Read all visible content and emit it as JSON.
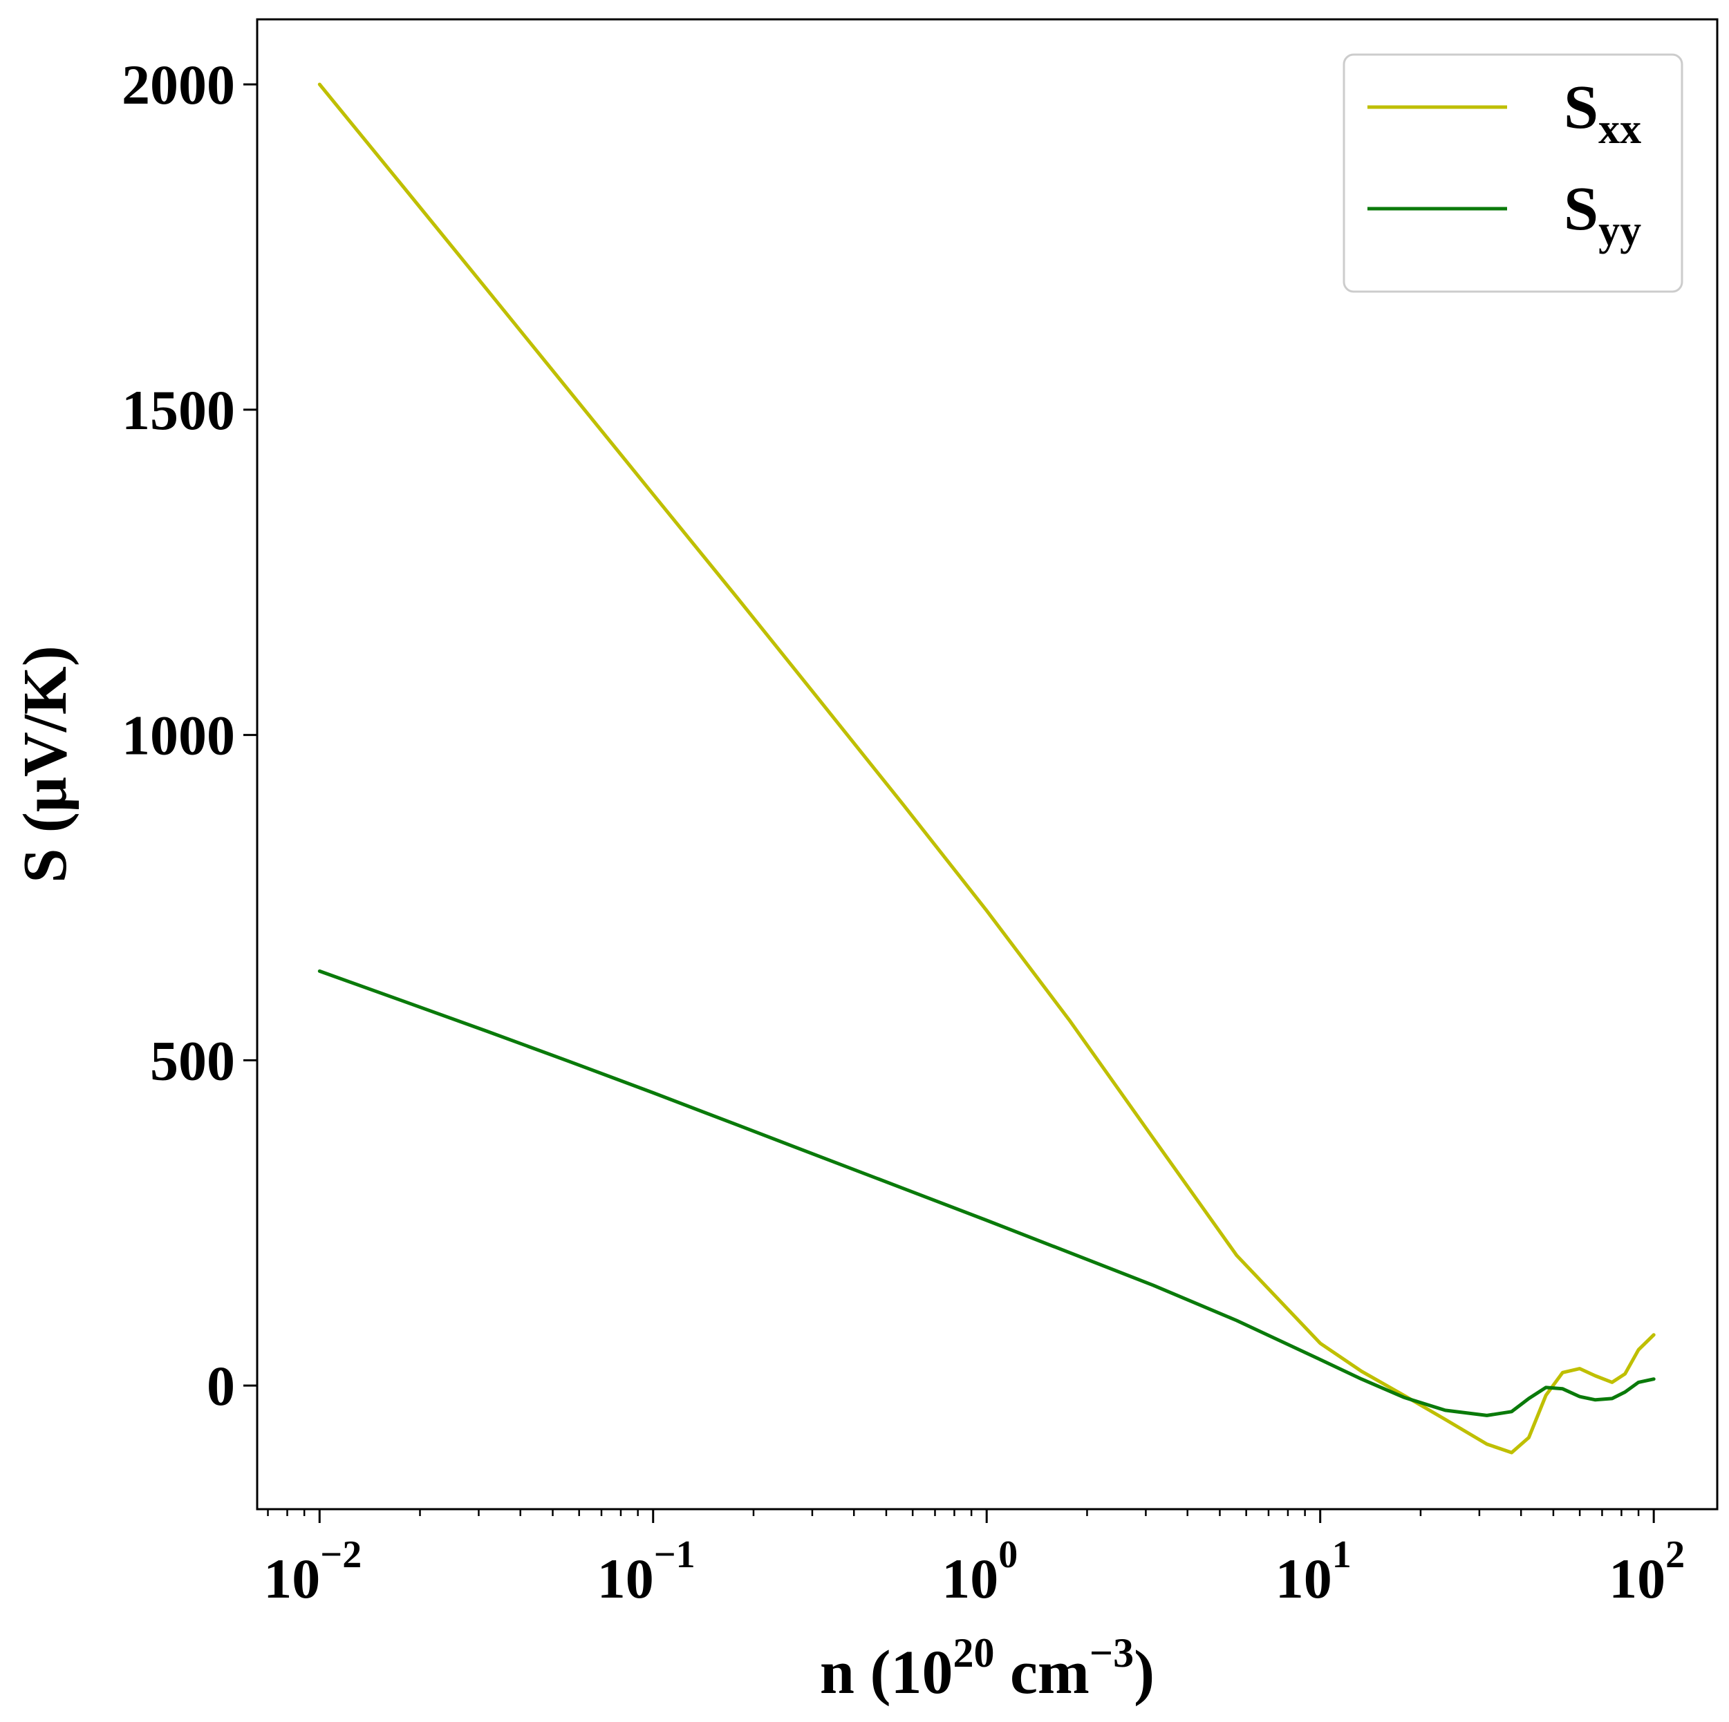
{
  "chart_data": {
    "type": "line",
    "xscale": "log",
    "xlim": [
      0.0065,
      155
    ],
    "ylim": [
      -190,
      2100
    ],
    "xlabel": {
      "main": "n (10",
      "sup1": "20",
      "mid": " cm",
      "sup2": "−3",
      "end": ")"
    },
    "ylabel": "S (μV/K)",
    "x_ticks": [
      {
        "value": 0.01,
        "base": "10",
        "exp": "−2"
      },
      {
        "value": 0.1,
        "base": "10",
        "exp": "−1"
      },
      {
        "value": 1,
        "base": "10",
        "exp": "0"
      },
      {
        "value": 10,
        "base": "10",
        "exp": "1"
      },
      {
        "value": 100,
        "base": "10",
        "exp": "2"
      }
    ],
    "y_ticks": [
      {
        "value": 0,
        "label": "0"
      },
      {
        "value": 500,
        "label": "500"
      },
      {
        "value": 1000,
        "label": "1000"
      },
      {
        "value": 1500,
        "label": "1500"
      },
      {
        "value": 2000,
        "label": "2000"
      }
    ],
    "legend": {
      "position": "top-right"
    },
    "series": [
      {
        "name": "S",
        "subscript": "xx",
        "color": "#bfbf00",
        "x": [
          0.01,
          0.0178,
          0.0316,
          0.0562,
          0.1,
          0.178,
          0.316,
          0.562,
          1.0,
          1.78,
          3.16,
          5.62,
          10,
          13.3,
          17.8,
          23.7,
          31.6,
          37.5,
          42.2,
          47.5,
          53.3,
          60,
          66.8,
          75,
          82,
          90,
          100
        ],
        "y": [
          2000,
          1843,
          1686,
          1528,
          1370,
          1212,
          1053,
          893,
          730,
          560,
          380,
          200,
          65,
          22,
          -15,
          -52,
          -90,
          -103,
          -80,
          -15,
          20,
          26,
          15,
          5,
          18,
          55,
          78
        ]
      },
      {
        "name": "S",
        "subscript": "yy",
        "color": "#0a7a0a",
        "x": [
          0.01,
          0.0178,
          0.0316,
          0.0562,
          0.1,
          0.178,
          0.316,
          0.562,
          1.0,
          1.78,
          3.16,
          5.62,
          10,
          13.3,
          17.8,
          23.7,
          31.6,
          37.5,
          42.2,
          47.5,
          53.3,
          60,
          66.8,
          75,
          82,
          90,
          100
        ],
        "y": [
          637,
          591,
          545,
          498,
          450,
          401,
          352,
          303,
          254,
          204,
          154,
          100,
          40,
          10,
          -18,
          -38,
          -46,
          -40,
          -20,
          -3,
          -5,
          -17,
          -22,
          -20,
          -10,
          5,
          10
        ]
      }
    ]
  }
}
